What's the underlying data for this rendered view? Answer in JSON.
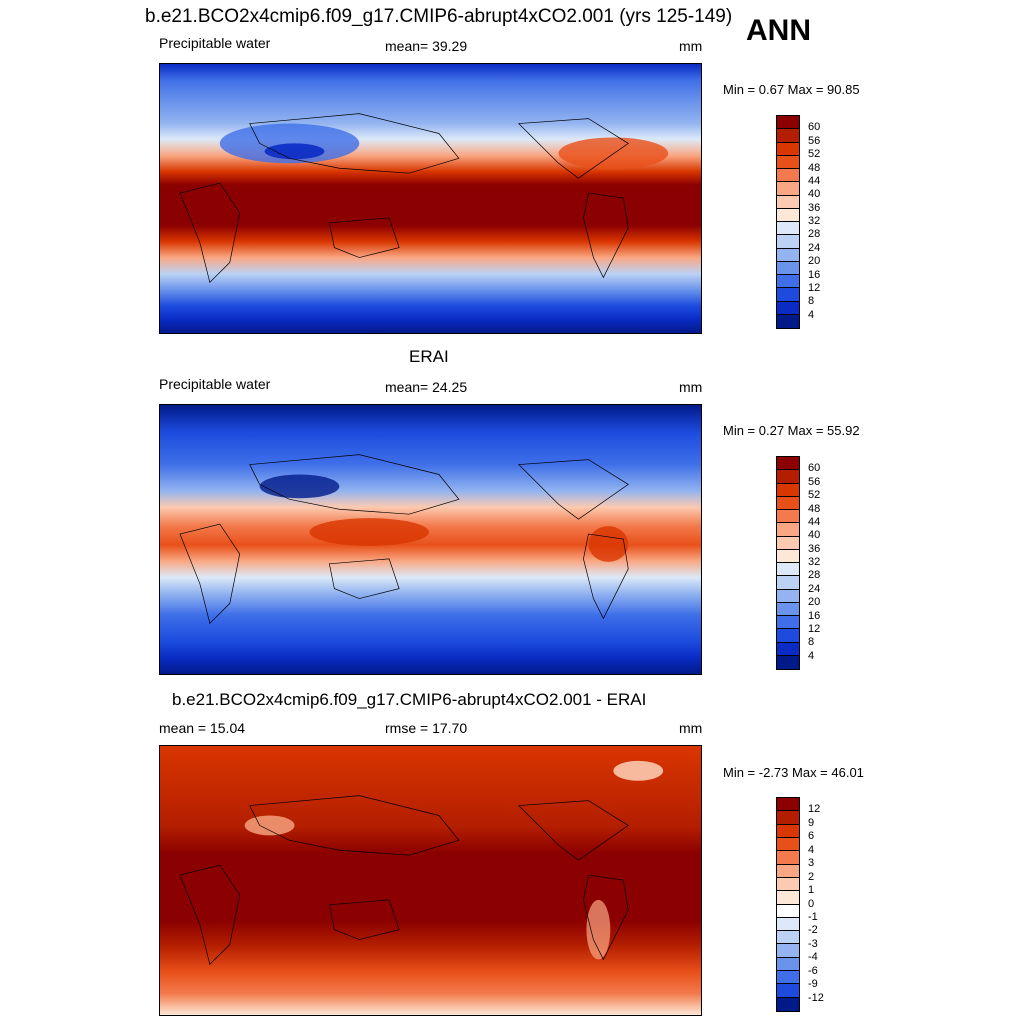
{
  "header": {
    "title": "b.e21.BCO2x4cmip6.f09_g17.CMIP6-abrupt4xCO2.001 (yrs 125-149)",
    "season": "ANN"
  },
  "chart_data": [
    {
      "type": "heatmap",
      "panel": "model",
      "variable_label": "Precipitable water",
      "mean_text": "mean=  39.29",
      "units": "mm",
      "minmax_text": "Min =   0.67 Max =  90.85",
      "colorbar_levels": [
        "60",
        "56",
        "52",
        "48",
        "44",
        "40",
        "36",
        "32",
        "28",
        "24",
        "20",
        "16",
        "12",
        "8",
        "4"
      ],
      "colorbar_colors": [
        "#8b0000",
        "#b31e00",
        "#d93600",
        "#e8501a",
        "#f37a4c",
        "#f9a783",
        "#fccab0",
        "#fde8d8",
        "#dde9f8",
        "#bcd2f5",
        "#93b4f0",
        "#6a93ec",
        "#3f6fe8",
        "#1c4bde",
        "#0a2bc4",
        "#011a8a"
      ],
      "annual_mean": 39.29,
      "min": 0.67,
      "max": 90.85
    },
    {
      "type": "heatmap",
      "panel": "observations",
      "panel_title": "ERAI",
      "variable_label": "Precipitable water",
      "mean_text": "mean=  24.25",
      "units": "mm",
      "minmax_text": "Min =   0.27 Max =  55.92",
      "colorbar_levels": [
        "60",
        "56",
        "52",
        "48",
        "44",
        "40",
        "36",
        "32",
        "28",
        "24",
        "20",
        "16",
        "12",
        "8",
        "4"
      ],
      "colorbar_colors": [
        "#8b0000",
        "#b31e00",
        "#d93600",
        "#e8501a",
        "#f37a4c",
        "#f9a783",
        "#fccab0",
        "#fde8d8",
        "#dde9f8",
        "#bcd2f5",
        "#93b4f0",
        "#6a93ec",
        "#3f6fe8",
        "#1c4bde",
        "#0a2bc4",
        "#011a8a"
      ],
      "annual_mean": 24.25,
      "min": 0.27,
      "max": 55.92
    },
    {
      "type": "heatmap",
      "panel": "difference",
      "panel_title": "b.e21.BCO2x4cmip6.f09_g17.CMIP6-abrupt4xCO2.001 - ERAI",
      "mean_text": "mean =  15.04",
      "rmse_text": "rmse =  17.70",
      "units": "mm",
      "minmax_text": "Min =  -2.73 Max =  46.01",
      "colorbar_levels": [
        "12",
        "9",
        "6",
        "4",
        "3",
        "2",
        "1",
        "0",
        "-1",
        "-2",
        "-3",
        "-4",
        "-6",
        "-9",
        "-12"
      ],
      "colorbar_colors": [
        "#8b0000",
        "#b31e00",
        "#d93600",
        "#e8501a",
        "#f37a4c",
        "#f9a783",
        "#fccab0",
        "#fde8d8",
        "#ffffff",
        "#dde9f8",
        "#bcd2f5",
        "#93b4f0",
        "#6a93ec",
        "#3f6fe8",
        "#1c4bde",
        "#011a8a"
      ],
      "mean": 15.04,
      "rmse": 17.7,
      "min": -2.73,
      "max": 46.01
    }
  ]
}
